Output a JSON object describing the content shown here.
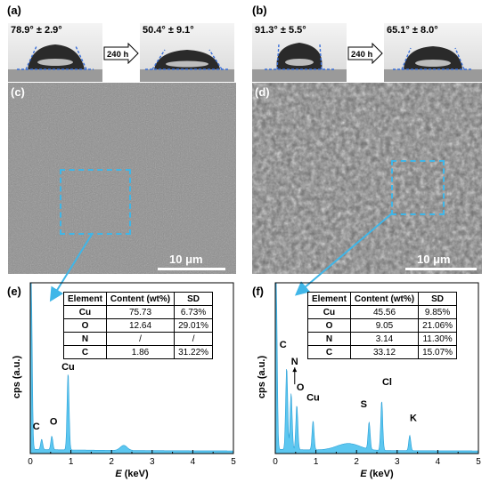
{
  "panels": {
    "a": {
      "label": "(a)",
      "angle_before": "78.9° ± 2.9°",
      "angle_after": "50.4° ± 9.1°",
      "arrow_text": "240 h"
    },
    "b": {
      "label": "(b)",
      "angle_before": "91.3° ± 5.5°",
      "angle_after": "65.1° ± 8.0°",
      "arrow_text": "240 h"
    },
    "c": {
      "label": "(c)",
      "scale": "10 μm"
    },
    "d": {
      "label": "(d)",
      "scale": "10 μm"
    },
    "e": {
      "label": "(e)"
    },
    "f": {
      "label": "(f)"
    }
  },
  "colors": {
    "accent": "#3fb6e8",
    "spectrum_fill": "#5cc7f0",
    "spectrum_edge": "#2a9fd6"
  },
  "tables": {
    "headers": [
      "Element",
      "Content (wt%)",
      "SD"
    ],
    "e": [
      [
        "Cu",
        "75.73",
        "6.73%"
      ],
      [
        "O",
        "12.64",
        "29.01%"
      ],
      [
        "N",
        "/",
        "/"
      ],
      [
        "C",
        "1.86",
        "31.22%"
      ]
    ],
    "f": [
      [
        "Cu",
        "45.56",
        "9.85%"
      ],
      [
        "O",
        "9.05",
        "21.06%"
      ],
      [
        "N",
        "3.14",
        "11.30%"
      ],
      [
        "C",
        "33.12",
        "15.07%"
      ]
    ]
  },
  "chart_data": [
    {
      "type": "area",
      "panel": "e",
      "xlabel": "E (keV)",
      "ylabel": "cps (a.u.)",
      "xlim": [
        0,
        5
      ],
      "x_ticks": [
        "0",
        "1",
        "2",
        "3",
        "4",
        "5"
      ],
      "peaks": [
        {
          "label": "C",
          "x": 0.28,
          "height": 0.06
        },
        {
          "label": "O",
          "x": 0.53,
          "height": 0.08
        },
        {
          "label": "Cu",
          "x": 0.93,
          "height": 0.45
        }
      ]
    },
    {
      "type": "area",
      "panel": "f",
      "xlabel": "E (keV)",
      "ylabel": "cps (a.u.)",
      "xlim": [
        0,
        5
      ],
      "x_ticks": [
        "0",
        "1",
        "2",
        "3",
        "4",
        "5"
      ],
      "peaks": [
        {
          "label": "C",
          "x": 0.28,
          "height": 0.48
        },
        {
          "label": "N",
          "x": 0.39,
          "height": 0.33
        },
        {
          "label": "O",
          "x": 0.53,
          "height": 0.26
        },
        {
          "label": "Cu",
          "x": 0.93,
          "height": 0.17
        },
        {
          "label": "S",
          "x": 2.31,
          "height": 0.16
        },
        {
          "label": "Cl",
          "x": 2.62,
          "height": 0.29
        },
        {
          "label": "K",
          "x": 3.31,
          "height": 0.09
        }
      ]
    }
  ]
}
